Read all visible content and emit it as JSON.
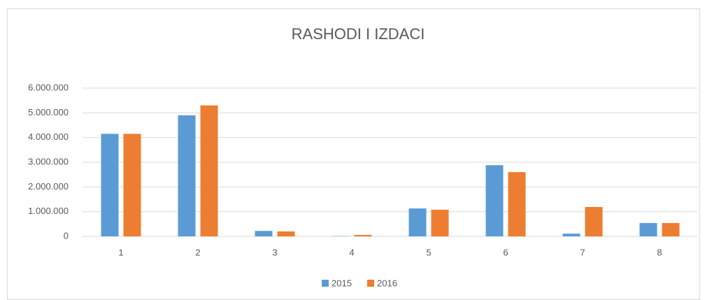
{
  "chart_data": {
    "type": "bar",
    "title": "RASHODI I  IZDACI",
    "categories": [
      "1",
      "2",
      "3",
      "4",
      "5",
      "6",
      "7",
      "8"
    ],
    "series": [
      {
        "name": "2015",
        "color": "#5b9bd5",
        "values": [
          4150000,
          4900000,
          220000,
          10000,
          1130000,
          2880000,
          110000,
          540000
        ]
      },
      {
        "name": "2016",
        "color": "#ed7d31",
        "values": [
          4150000,
          5300000,
          200000,
          60000,
          1080000,
          2600000,
          1190000,
          540000
        ]
      }
    ],
    "ylim": [
      0,
      6000000
    ],
    "yticks": [
      0,
      {
        "value": 1000000,
        "label": "1.000.000"
      },
      {
        "value": 2000000,
        "label": "2.000.000"
      },
      {
        "value": 3000000,
        "label": "3.000.000"
      },
      {
        "value": 4000000,
        "label": "4.000.000"
      },
      {
        "value": 5000000,
        "label": "5.000.000"
      },
      {
        "value": 6000000,
        "label": "6.000.000"
      }
    ],
    "grid": true,
    "legend": "bottom"
  }
}
